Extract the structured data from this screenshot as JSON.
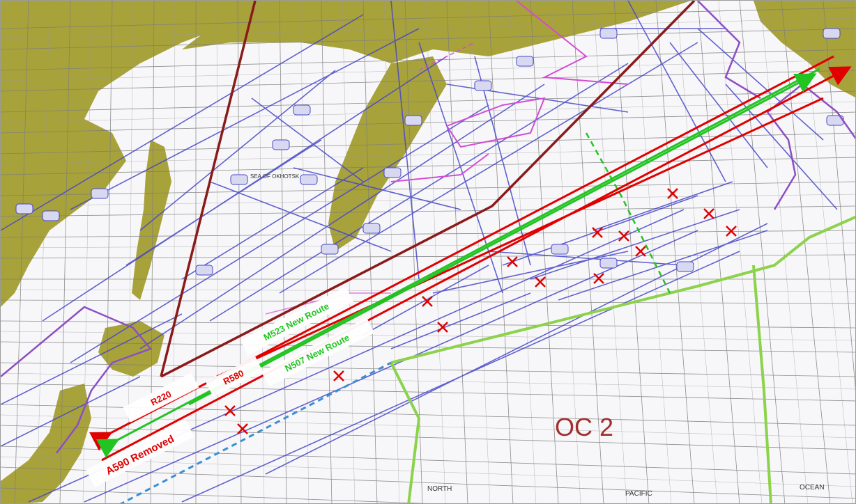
{
  "map": {
    "colors": {
      "land": "#a8a23a",
      "sea": "#f7f7f9",
      "grid": "#7d7d7d",
      "airway": "#4747c8",
      "brown_route": "#8b1a1a",
      "red_route": "#e00000",
      "green_route": "#22c422",
      "fir_boundary": "#8c4ec4",
      "magenta_boundary": "#d44bd4",
      "oc_boundary": "#8cd24a",
      "removed_marker": "#e00000",
      "dashed_blue": "#3a8fd4"
    },
    "route_labels": {
      "r220": "R220",
      "r580": "R580",
      "m523": "M523 New Route",
      "n507": "N507 New Route",
      "a590": "A590 Removed"
    },
    "region_label": "OC 2",
    "place_labels": {
      "north": "NORTH",
      "pacific": "PACIFIC",
      "ocean": "OCEAN",
      "sea_of_okhotsk": "SEA OF OKHOTSK"
    },
    "marker_icon": "x-mark-icon"
  }
}
